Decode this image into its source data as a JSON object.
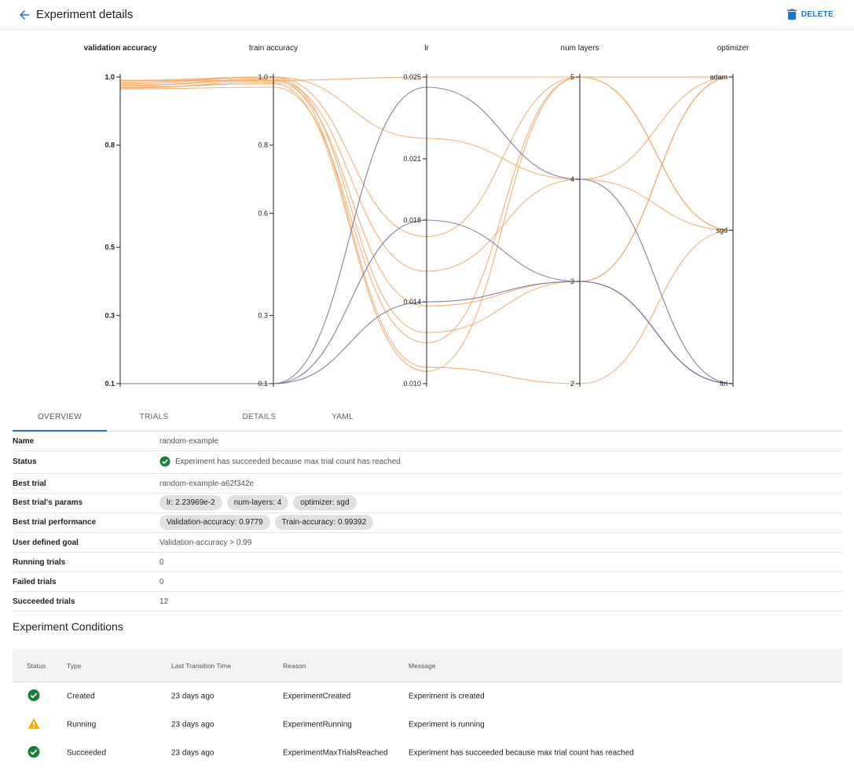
{
  "header": {
    "title": "Experiment details",
    "delete_label": "DELETE"
  },
  "chart_data": {
    "type": "parallel_coordinates",
    "axes": [
      {
        "name": "validation accuracy",
        "ticks": [
          "1.0",
          "0.8",
          "0.5",
          "0.3",
          "0.1"
        ],
        "range": [
          0.1,
          1.0
        ]
      },
      {
        "name": "train accuracy",
        "ticks": [
          "1.0",
          "0.8",
          "0.6",
          "0.3",
          "0.1"
        ],
        "range": [
          0.1,
          1.0
        ]
      },
      {
        "name": "lr",
        "ticks": [
          "0.025",
          "0.021",
          "0.018",
          "0.014",
          "0.010"
        ],
        "range": [
          0.01,
          0.025
        ]
      },
      {
        "name": "num layers",
        "ticks": [
          "5",
          "4",
          "3",
          "2"
        ],
        "range": [
          2,
          5
        ]
      },
      {
        "name": "optimizer",
        "ticks": [
          "adam",
          "sgd",
          "ftrl"
        ],
        "categorical": true
      }
    ],
    "series": [
      {
        "values": [
          0.99,
          0.99,
          0.025,
          5,
          "adam"
        ],
        "color": "#f5a35c"
      },
      {
        "values": [
          0.985,
          1.0,
          0.0172,
          5,
          "adam"
        ],
        "color": "#f5a35c"
      },
      {
        "values": [
          0.98,
          1.0,
          0.022,
          4,
          "sgd"
        ],
        "color": "#f5a35c"
      },
      {
        "values": [
          0.975,
          0.99,
          0.0155,
          4,
          "adam"
        ],
        "color": "#f5a35c"
      },
      {
        "values": [
          0.97,
          0.98,
          0.0106,
          5,
          "sgd"
        ],
        "color": "#f5a35c"
      },
      {
        "values": [
          0.968,
          0.985,
          0.0138,
          3,
          "adam"
        ],
        "color": "#f5a35c"
      },
      {
        "values": [
          0.975,
          0.995,
          0.0108,
          2,
          "sgd"
        ],
        "color": "#f5a35c"
      },
      {
        "values": [
          0.99,
          1.0,
          0.0125,
          3,
          "adam"
        ],
        "color": "#f5a35c"
      },
      {
        "values": [
          0.965,
          0.97,
          0.012,
          5,
          "sgd"
        ],
        "color": "#f5a35c"
      },
      {
        "values": [
          0.1,
          0.1,
          0.0245,
          4,
          "ftrl"
        ],
        "color": "#6b6b9a"
      },
      {
        "values": [
          0.1,
          0.1,
          0.018,
          3,
          "ftrl"
        ],
        "color": "#6b6b9a"
      },
      {
        "values": [
          0.1,
          0.1,
          0.014,
          3,
          "ftrl"
        ],
        "color": "#6b6b9a"
      }
    ]
  },
  "tabs": [
    "OVERVIEW",
    "TRIALS",
    "DETAILS",
    "YAML"
  ],
  "overview": {
    "rows": [
      {
        "label": "Name",
        "value": "random-example"
      },
      {
        "label": "Status",
        "value": "Experiment has succeeded because max trial count has reached",
        "icon": "check-circle-icon"
      },
      {
        "label": "Best trial",
        "value": "random-example-a62f342e"
      },
      {
        "label": "Best trial's params",
        "chips": [
          "lr: 2.23969e-2",
          "num-layers: 4",
          "optimizer: sgd"
        ]
      },
      {
        "label": "Best trial performance",
        "chips": [
          "Validation-accuracy: 0.9779",
          "Train-accuracy: 0.99392"
        ]
      },
      {
        "label": "User defined goal",
        "value": "Validation-accuracy > 0.99"
      },
      {
        "label": "Running trials",
        "value": "0"
      },
      {
        "label": "Failed trials",
        "value": "0"
      },
      {
        "label": "Succeeded trials",
        "value": "12"
      }
    ]
  },
  "conditions": {
    "title": "Experiment Conditions",
    "columns": [
      "Status",
      "Type",
      "Last Transition Time",
      "Reason",
      "Message"
    ],
    "rows": [
      {
        "status": "success",
        "type": "Created",
        "time": "23 days ago",
        "reason": "ExperimentCreated",
        "message": "Experiment is created"
      },
      {
        "status": "warning",
        "type": "Running",
        "time": "23 days ago",
        "reason": "ExperimentRunning",
        "message": "Experiment is running"
      },
      {
        "status": "success",
        "type": "Succeeded",
        "time": "23 days ago",
        "reason": "ExperimentMaxTrialsReached",
        "message": "Experiment has succeeded because max trial count has reached"
      }
    ]
  },
  "colors": {
    "accent": "#1976d2",
    "success": "#188038",
    "warning": "#f9ab00",
    "line_orange": "#f5a35c",
    "line_purple": "#6b6b9a"
  }
}
